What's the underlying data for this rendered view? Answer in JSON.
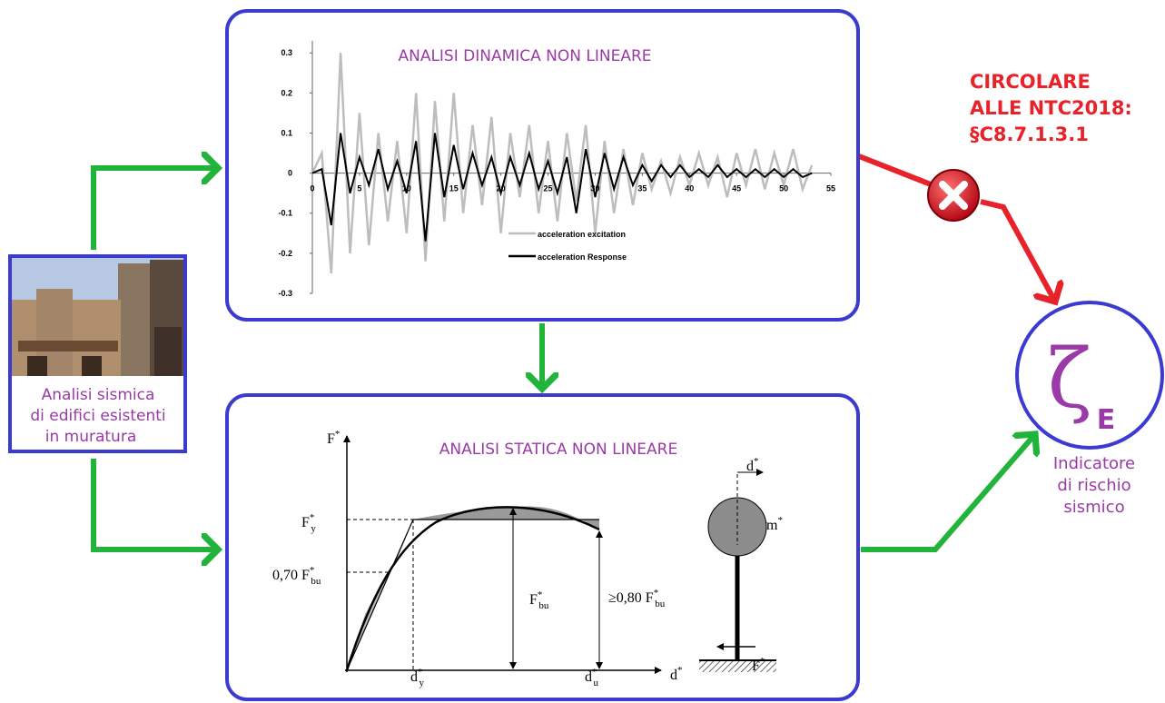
{
  "left_panel": {
    "caption": [
      "Analisi sismica",
      "di edifici esistenti",
      "in muratura"
    ]
  },
  "chart_data": {
    "type": "line",
    "title": "ANALISI DINAMICA NON LINEARE",
    "x": [
      0,
      1,
      2,
      3,
      4,
      5,
      6,
      7,
      8,
      9,
      10,
      11,
      12,
      13,
      14,
      15,
      16,
      17,
      18,
      19,
      20,
      21,
      22,
      23,
      24,
      25,
      26,
      27,
      28,
      29,
      30,
      31,
      32,
      33,
      34,
      35,
      36,
      37,
      38,
      39,
      40,
      41,
      42,
      43,
      44,
      45,
      46,
      47,
      48,
      49,
      50,
      51,
      52,
      53
    ],
    "series": [
      {
        "name": "acceleration excitation",
        "color": "#bdbdbd",
        "values": [
          0,
          0.05,
          -0.25,
          0.3,
          -0.2,
          0.15,
          -0.18,
          0.1,
          -0.12,
          0.08,
          -0.15,
          0.2,
          -0.22,
          0.18,
          -0.12,
          0.2,
          -0.1,
          0.12,
          -0.08,
          0.14,
          -0.15,
          0.1,
          -0.06,
          0.12,
          -0.1,
          0.08,
          -0.12,
          0.1,
          -0.07,
          0.12,
          -0.15,
          0.08,
          -0.1,
          0.06,
          -0.08,
          0.05,
          -0.04,
          0.03,
          -0.05,
          0.04,
          -0.03,
          0.05,
          -0.03,
          0.04,
          -0.06,
          0.05,
          -0.03,
          0.06,
          -0.04,
          0.05,
          -0.03,
          0.06,
          -0.04,
          0.02
        ]
      },
      {
        "name": "acceleration Response",
        "color": "#000000",
        "values": [
          0,
          0.01,
          -0.13,
          0.1,
          -0.05,
          0.04,
          -0.03,
          0.06,
          -0.04,
          0.03,
          -0.05,
          0.08,
          -0.17,
          0.1,
          -0.06,
          0.07,
          -0.04,
          0.05,
          -0.03,
          0.04,
          -0.05,
          0.04,
          -0.03,
          0.05,
          -0.04,
          0.03,
          -0.05,
          0.04,
          -0.1,
          0.06,
          -0.06,
          0.05,
          -0.04,
          0.04,
          -0.03,
          0.02,
          -0.02,
          0.02,
          -0.01,
          0.02,
          -0.01,
          0.01,
          -0.01,
          0.02,
          -0.01,
          0.01,
          -0.01,
          0.01,
          -0.01,
          0.01,
          -0.01,
          0.01,
          -0.01,
          0
        ]
      }
    ],
    "xlim": [
      0,
      55
    ],
    "ylim": [
      -0.3,
      0.33
    ],
    "xticks": [
      0,
      5,
      10,
      15,
      20,
      25,
      30,
      35,
      40,
      45,
      50,
      55
    ],
    "yticks": [
      -0.3,
      -0.2,
      -0.1,
      0,
      0.1,
      0.2,
      0.3
    ]
  },
  "pushover": {
    "title": "ANALISI STATICA NON LINEARE",
    "labels": [
      {
        "text": "F",
        "sup": "*"
      },
      {
        "text": "F",
        "sup": "*",
        "sub": "y"
      },
      {
        "text": "0,70 F",
        "sup": "*",
        "sub": "bu"
      },
      {
        "text": "F",
        "sup": "*",
        "sub": "bu"
      },
      {
        "text": "≥0,80 F",
        "sup": "*",
        "sub": "bu"
      },
      {
        "text": "d",
        "sup": "*"
      },
      {
        "text": "d",
        "sup": "*",
        "sub": "y"
      },
      {
        "text": "d",
        "sup": "*",
        "sub": "u"
      },
      {
        "text": "d",
        "sup": "*"
      },
      {
        "text": "m",
        "sup": "*"
      },
      {
        "text": "F",
        "sup": "*"
      }
    ]
  },
  "circolare": [
    "CIRCOLARE",
    "ALLE NTC2018:",
    "§C8.7.1.3.1"
  ],
  "indicator": {
    "symbol": "ζ",
    "subscript": "E",
    "caption": [
      "Indicatore",
      "di rischio",
      "sismico"
    ]
  }
}
